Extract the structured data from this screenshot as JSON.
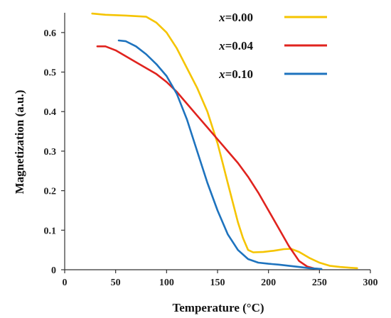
{
  "chart_data": {
    "type": "line",
    "xlabel": "Temperature (°C)",
    "ylabel": "Magnetization (a.u.)",
    "xlim": [
      0,
      300
    ],
    "ylim": [
      0,
      0.65
    ],
    "x_ticks": [
      0,
      50,
      100,
      150,
      200,
      250,
      300
    ],
    "y_ticks": [
      0,
      0.1,
      0.2,
      0.3,
      0.4,
      0.5,
      0.6
    ],
    "x_tick_labels": [
      "0",
      "50",
      "100",
      "150",
      "200",
      "250",
      "300"
    ],
    "y_tick_labels": [
      "0",
      "0.1",
      "0.2",
      "0.3",
      "0.4",
      "0.5",
      "0.6"
    ],
    "grid": false,
    "legend_position": "top-right",
    "series": [
      {
        "name": "x=0.00",
        "var": "x",
        "value_label": "=0.00",
        "color": "#F5C400",
        "points": [
          [
            27,
            0.648
          ],
          [
            40,
            0.645
          ],
          [
            60,
            0.643
          ],
          [
            80,
            0.64
          ],
          [
            90,
            0.625
          ],
          [
            100,
            0.6
          ],
          [
            110,
            0.56
          ],
          [
            120,
            0.51
          ],
          [
            130,
            0.46
          ],
          [
            140,
            0.4
          ],
          [
            150,
            0.32
          ],
          [
            155,
            0.27
          ],
          [
            160,
            0.22
          ],
          [
            165,
            0.17
          ],
          [
            170,
            0.12
          ],
          [
            175,
            0.08
          ],
          [
            180,
            0.05
          ],
          [
            185,
            0.044
          ],
          [
            195,
            0.045
          ],
          [
            205,
            0.048
          ],
          [
            215,
            0.052
          ],
          [
            222,
            0.053
          ],
          [
            230,
            0.045
          ],
          [
            240,
            0.03
          ],
          [
            250,
            0.018
          ],
          [
            260,
            0.01
          ],
          [
            270,
            0.007
          ],
          [
            280,
            0.005
          ],
          [
            287,
            0.004
          ]
        ]
      },
      {
        "name": "x=0.04",
        "var": "x",
        "value_label": "=0.04",
        "color": "#E0231E",
        "points": [
          [
            32,
            0.565
          ],
          [
            40,
            0.565
          ],
          [
            50,
            0.555
          ],
          [
            60,
            0.54
          ],
          [
            70,
            0.525
          ],
          [
            80,
            0.51
          ],
          [
            90,
            0.495
          ],
          [
            100,
            0.475
          ],
          [
            110,
            0.45
          ],
          [
            120,
            0.42
          ],
          [
            130,
            0.39
          ],
          [
            140,
            0.36
          ],
          [
            150,
            0.33
          ],
          [
            160,
            0.3
          ],
          [
            170,
            0.27
          ],
          [
            180,
            0.235
          ],
          [
            190,
            0.195
          ],
          [
            200,
            0.15
          ],
          [
            210,
            0.105
          ],
          [
            220,
            0.06
          ],
          [
            230,
            0.022
          ],
          [
            238,
            0.008
          ],
          [
            245,
            0.003
          ],
          [
            250,
            0.002
          ]
        ]
      },
      {
        "name": "x=0.10",
        "var": "x",
        "value_label": "=0.10",
        "color": "#1E73BE",
        "points": [
          [
            53,
            0.58
          ],
          [
            60,
            0.578
          ],
          [
            70,
            0.565
          ],
          [
            80,
            0.545
          ],
          [
            90,
            0.52
          ],
          [
            100,
            0.49
          ],
          [
            110,
            0.445
          ],
          [
            120,
            0.38
          ],
          [
            130,
            0.3
          ],
          [
            140,
            0.22
          ],
          [
            150,
            0.15
          ],
          [
            160,
            0.09
          ],
          [
            170,
            0.05
          ],
          [
            180,
            0.027
          ],
          [
            190,
            0.018
          ],
          [
            200,
            0.015
          ],
          [
            210,
            0.013
          ],
          [
            220,
            0.01
          ],
          [
            230,
            0.007
          ],
          [
            240,
            0.004
          ],
          [
            252,
            0.002
          ]
        ]
      }
    ]
  }
}
